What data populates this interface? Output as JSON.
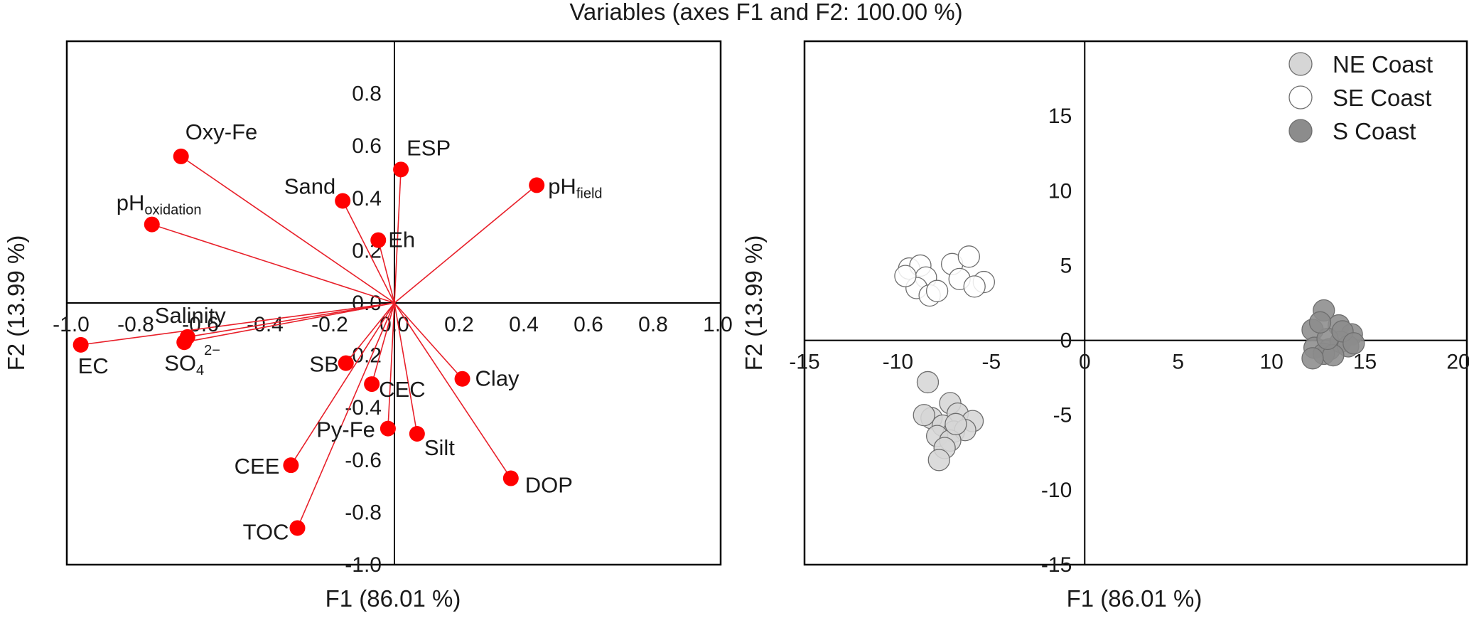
{
  "title": "Variables (axes F1 and F2: 100.00 %)",
  "chart_data": [
    {
      "type": "biplot",
      "xlabel": "F1 (86.01 %)",
      "ylabel": "F2 (13.99 %)",
      "xlim": [
        -1.0,
        1.0
      ],
      "ylim": [
        -1.0,
        1.0
      ],
      "xticks": [
        "-1.0",
        "-0.8",
        "-0.6",
        "-0.4",
        "-0.2",
        "0.0",
        "0.2",
        "0.4",
        "0.6",
        "0.8",
        "1.0"
      ],
      "yticks": [
        "-1.0",
        "-0.8",
        "-0.6",
        "-0.4",
        "-0.2",
        "0.0",
        "0.2",
        "0.4",
        "0.6",
        "0.8"
      ],
      "line_color": "#e8202a",
      "marker_color": "#ff0000",
      "variables": [
        {
          "name": "Oxy-Fe",
          "sub": "",
          "sup": "",
          "x": -0.66,
          "y": 0.56
        },
        {
          "name": "pH",
          "sub": "oxidation",
          "sup": "",
          "x": -0.75,
          "y": 0.3
        },
        {
          "name": "Sand",
          "sub": "",
          "sup": "",
          "x": -0.16,
          "y": 0.39
        },
        {
          "name": "ESP",
          "sub": "",
          "sup": "",
          "x": 0.02,
          "y": 0.51
        },
        {
          "name": "pH",
          "sub": "field",
          "sup": "",
          "x": 0.44,
          "y": 0.45
        },
        {
          "name": "Eh",
          "sub": "",
          "sup": "",
          "x": -0.05,
          "y": 0.24
        },
        {
          "name": "Salinity",
          "sub": "",
          "sup": "",
          "x": -0.64,
          "y": -0.13
        },
        {
          "name": "EC",
          "sub": "",
          "sup": "",
          "x": -0.97,
          "y": -0.16
        },
        {
          "name": "SO",
          "sub": "4",
          "sup": "2−",
          "x": -0.65,
          "y": -0.15
        },
        {
          "name": "SB",
          "sub": "",
          "sup": "",
          "x": -0.15,
          "y": -0.23
        },
        {
          "name": "CEC",
          "sub": "",
          "sup": "",
          "x": -0.07,
          "y": -0.31
        },
        {
          "name": "Clay",
          "sub": "",
          "sup": "",
          "x": 0.21,
          "y": -0.29
        },
        {
          "name": "Py-Fe",
          "sub": "",
          "sup": "",
          "x": -0.02,
          "y": -0.48
        },
        {
          "name": "Silt",
          "sub": "",
          "sup": "",
          "x": 0.07,
          "y": -0.5
        },
        {
          "name": "CEE",
          "sub": "",
          "sup": "",
          "x": -0.32,
          "y": -0.62
        },
        {
          "name": "DOP",
          "sub": "",
          "sup": "",
          "x": 0.36,
          "y": -0.67
        },
        {
          "name": "TOC",
          "sub": "",
          "sup": "",
          "x": -0.3,
          "y": -0.86
        }
      ]
    },
    {
      "type": "scatter",
      "xlabel": "F1 (86.01 %)",
      "ylabel": "F2 (13.99 %)",
      "xlim": [
        -15,
        20
      ],
      "ylim": [
        -15,
        20
      ],
      "xticks": [
        "-15",
        "-10",
        "-5",
        "0",
        "5",
        "10",
        "15",
        "20"
      ],
      "yticks": [
        "-15",
        "-10",
        "-5",
        "0",
        "5",
        "10",
        "15"
      ],
      "legend_position": "top-right",
      "series": [
        {
          "name": "NE Coast",
          "color": "#d6d6d6",
          "points": [
            [
              -8.4,
              -2.8
            ],
            [
              -8.2,
              -5.2
            ],
            [
              -7.2,
              -4.2
            ],
            [
              -6.8,
              -4.9
            ],
            [
              -6.0,
              -5.4
            ],
            [
              -7.6,
              -5.7
            ],
            [
              -7.0,
              -6.1
            ],
            [
              -7.9,
              -6.4
            ],
            [
              -6.4,
              -6.0
            ],
            [
              -7.2,
              -6.7
            ],
            [
              -7.5,
              -7.2
            ],
            [
              -7.8,
              -8.0
            ],
            [
              -8.6,
              -5.0
            ],
            [
              -6.9,
              -5.6
            ]
          ]
        },
        {
          "name": "SE Coast",
          "color": "#ffffff",
          "points": [
            [
              -9.4,
              4.8
            ],
            [
              -8.8,
              5.0
            ],
            [
              -8.5,
              4.2
            ],
            [
              -7.1,
              5.1
            ],
            [
              -6.2,
              5.6
            ],
            [
              -6.7,
              4.1
            ],
            [
              -5.4,
              3.9
            ],
            [
              -5.9,
              3.6
            ],
            [
              -9.0,
              3.5
            ],
            [
              -8.3,
              3.0
            ],
            [
              -7.9,
              3.3
            ],
            [
              -9.6,
              4.3
            ]
          ]
        },
        {
          "name": "S Coast",
          "color": "#8c8c8c",
          "points": [
            [
              12.8,
              2.0
            ],
            [
              12.2,
              0.7
            ],
            [
              13.6,
              1.0
            ],
            [
              14.3,
              0.4
            ],
            [
              12.3,
              -0.5
            ],
            [
              13.1,
              -0.6
            ],
            [
              13.7,
              -0.1
            ],
            [
              14.1,
              -0.4
            ],
            [
              12.8,
              -0.9
            ],
            [
              13.3,
              -1.0
            ],
            [
              12.2,
              -1.2
            ],
            [
              13.0,
              0.1
            ],
            [
              13.8,
              0.6
            ],
            [
              12.6,
              1.2
            ],
            [
              14.4,
              -0.2
            ]
          ]
        }
      ]
    }
  ]
}
